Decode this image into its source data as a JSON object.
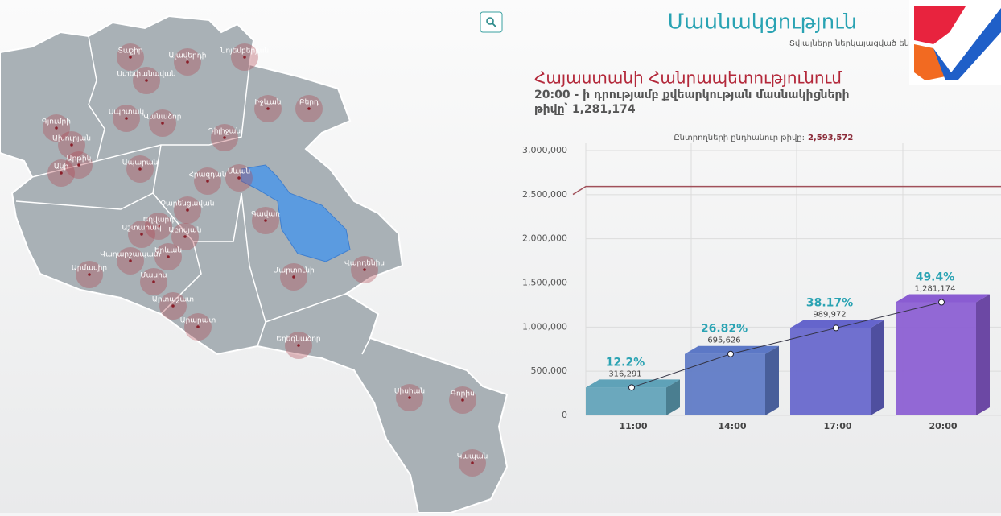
{
  "header": {
    "title": "Մասնակցություն",
    "note": "Տվյալները ներկայացված են"
  },
  "summary": {
    "region": "Հայաստանի Հանրապետությունում",
    "line1": "20:00 - ի դրությամբ քվեարկության մասնակիցների",
    "line2": "թիվը՝ 1,281,174"
  },
  "map": {
    "cities": [
      "Տաշիր",
      "Ալավերդի",
      "Նոյեմբերյան",
      "Ստեփանավան",
      "Իջևան",
      "Բերդ",
      "Սպիտակ",
      "Վանաձոր",
      "Գյումրի",
      "Ախուրյան",
      "Դիլիջան",
      "Արթիկ",
      "Անի",
      "Ապարան",
      "Հրազդան",
      "Սևան",
      "Չարենցավան",
      "Գավառ",
      "Եղվարդ",
      "Աշտարակ",
      "Աբովյան",
      "Երևան",
      "Վաղարշապատ",
      "Արմավիր",
      "Մասիս",
      "Մարտունի",
      "Վարդենիս",
      "Արտաշատ",
      "Արարատ",
      "Եղեգնաձոր",
      "Սիսիան",
      "Գորիս",
      "Կապան"
    ]
  },
  "chart_data": {
    "type": "bar",
    "categories": [
      "11:00",
      "14:00",
      "17:00",
      "20:00"
    ],
    "values": [
      316291,
      695626,
      989972,
      1281174
    ],
    "value_labels": [
      "316,291",
      "695,626",
      "989,972",
      "1,281,174"
    ],
    "percent_labels": [
      "12.2%",
      "26.82%",
      "38.17%",
      "49.4%"
    ],
    "colors": [
      "#5fa2b8",
      "#5c78c6",
      "#6565cc",
      "#8a5cd2"
    ],
    "total_label": "Ընտրողների ընդհանուր թիվը:",
    "total": 2593572,
    "total_label_value": "2,593,572",
    "ylim": [
      0,
      3000000
    ],
    "yticks": [
      0,
      {
        "value": 500000,
        "label": "500,000"
      },
      {
        "value": 1000000,
        "label": "1,000,000"
      },
      {
        "value": 1500000,
        "label": "1,500,000"
      },
      {
        "value": 2000000,
        "label": "2,000,000"
      },
      {
        "value": 2500000,
        "label": "2,500,000"
      },
      {
        "value": 3000000,
        "label": "3,000,000"
      }
    ],
    "grid": true
  }
}
